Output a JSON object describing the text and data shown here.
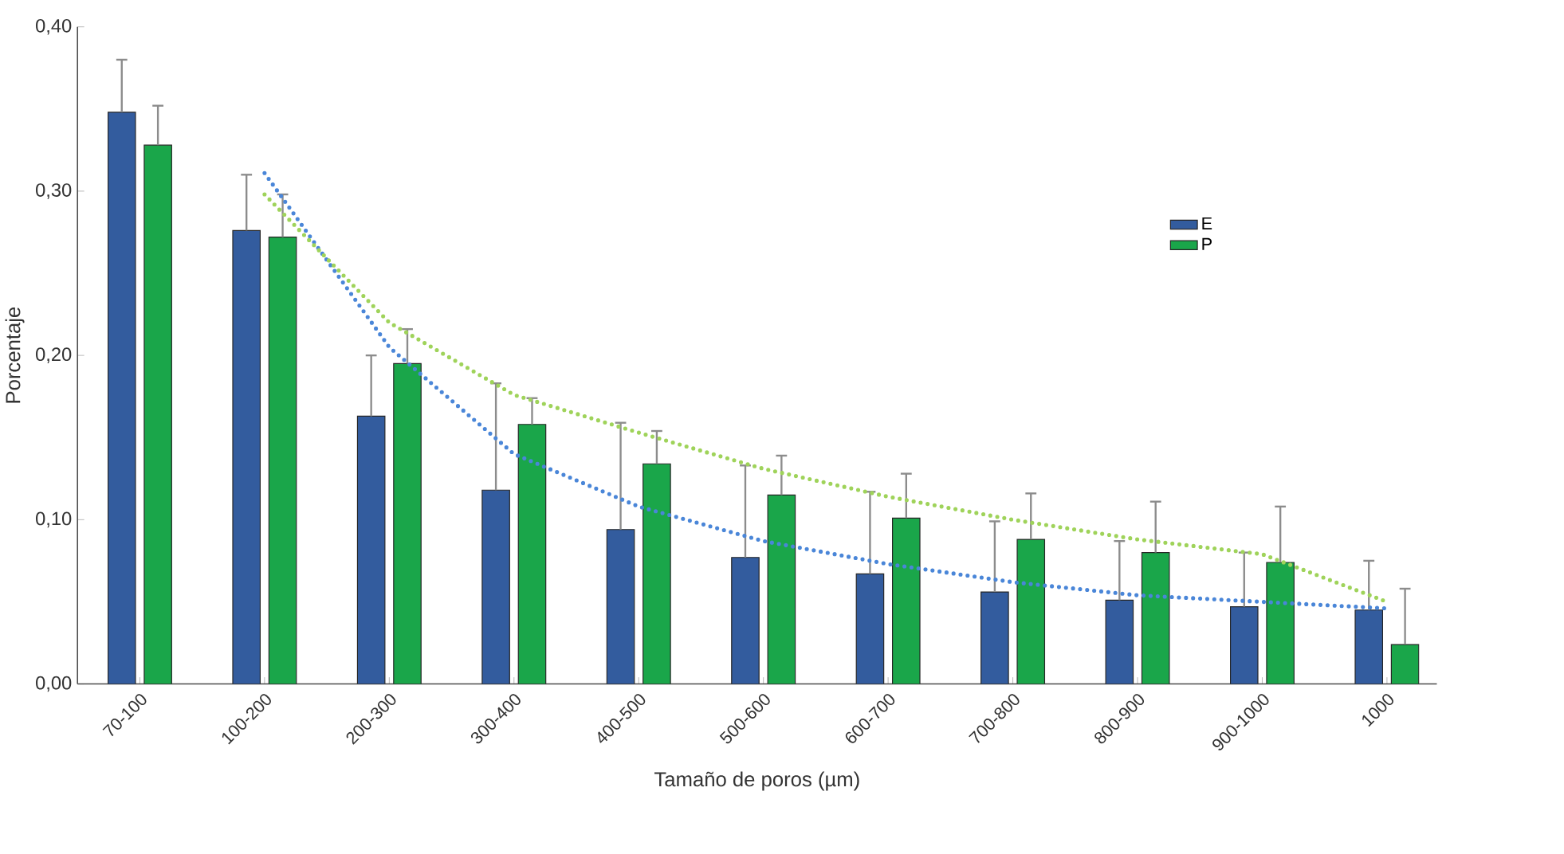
{
  "chart_data": {
    "type": "bar",
    "xlabel": "Tamaño de poros (µm)",
    "ylabel": "Porcentaje",
    "categories": [
      "70-100",
      "100-200",
      "200-300",
      "300-400",
      "400-500",
      "500-600",
      "600-700",
      "700-800",
      "800-900",
      "900-1000",
      "1000"
    ],
    "series": [
      {
        "name": "E",
        "color": "#335c9e",
        "values": [
          0.348,
          0.276,
          0.163,
          0.118,
          0.094,
          0.077,
          0.067,
          0.056,
          0.051,
          0.047,
          0.045
        ],
        "errors": [
          [
            0.348,
            0.38
          ],
          [
            0.276,
            0.31
          ],
          [
            0.163,
            0.2
          ],
          [
            0.118,
            0.183
          ],
          [
            0.094,
            0.159
          ],
          [
            0.077,
            0.133
          ],
          [
            0.067,
            0.117
          ],
          [
            0.056,
            0.099
          ],
          [
            0.051,
            0.087
          ],
          [
            0.047,
            0.08
          ],
          [
            0.045,
            0.075
          ]
        ]
      },
      {
        "name": "P",
        "color": "#1aa64a",
        "values": [
          0.328,
          0.272,
          0.195,
          0.158,
          0.134,
          0.115,
          0.101,
          0.088,
          0.08,
          0.074,
          0.024
        ],
        "errors": [
          [
            0.328,
            0.352
          ],
          [
            0.272,
            0.298
          ],
          [
            0.195,
            0.216
          ],
          [
            0.158,
            0.174
          ],
          [
            0.134,
            0.154
          ],
          [
            0.115,
            0.139
          ],
          [
            0.101,
            0.128
          ],
          [
            0.088,
            0.116
          ],
          [
            0.08,
            0.111
          ],
          [
            0.074,
            0.108
          ],
          [
            0.024,
            0.058
          ]
        ]
      },
      {
        "type": "line",
        "color": "#4a86d8",
        "line_style": "dotted",
        "values": [
          null,
          0.311,
          0.205,
          0.14,
          0.108,
          0.087,
          0.073,
          0.062,
          0.054,
          0.05,
          0.046
        ]
      },
      {
        "type": "line",
        "color": "#9fd35a",
        "line_style": "dotted",
        "values": [
          null,
          0.298,
          0.22,
          0.176,
          0.153,
          0.131,
          0.114,
          0.1,
          0.088,
          0.079,
          0.05
        ]
      }
    ],
    "ylim": [
      0,
      0.4
    ],
    "yticks": [
      {
        "value": 0,
        "label": "0,00"
      },
      {
        "value": 0.1,
        "label": "0,10"
      },
      {
        "value": 0.2,
        "label": "0,20"
      },
      {
        "value": 0.3,
        "label": "0,30"
      },
      {
        "value": 0.4,
        "label": "0,40"
      }
    ],
    "grid": false,
    "legend": "top right",
    "marker": "none"
  }
}
